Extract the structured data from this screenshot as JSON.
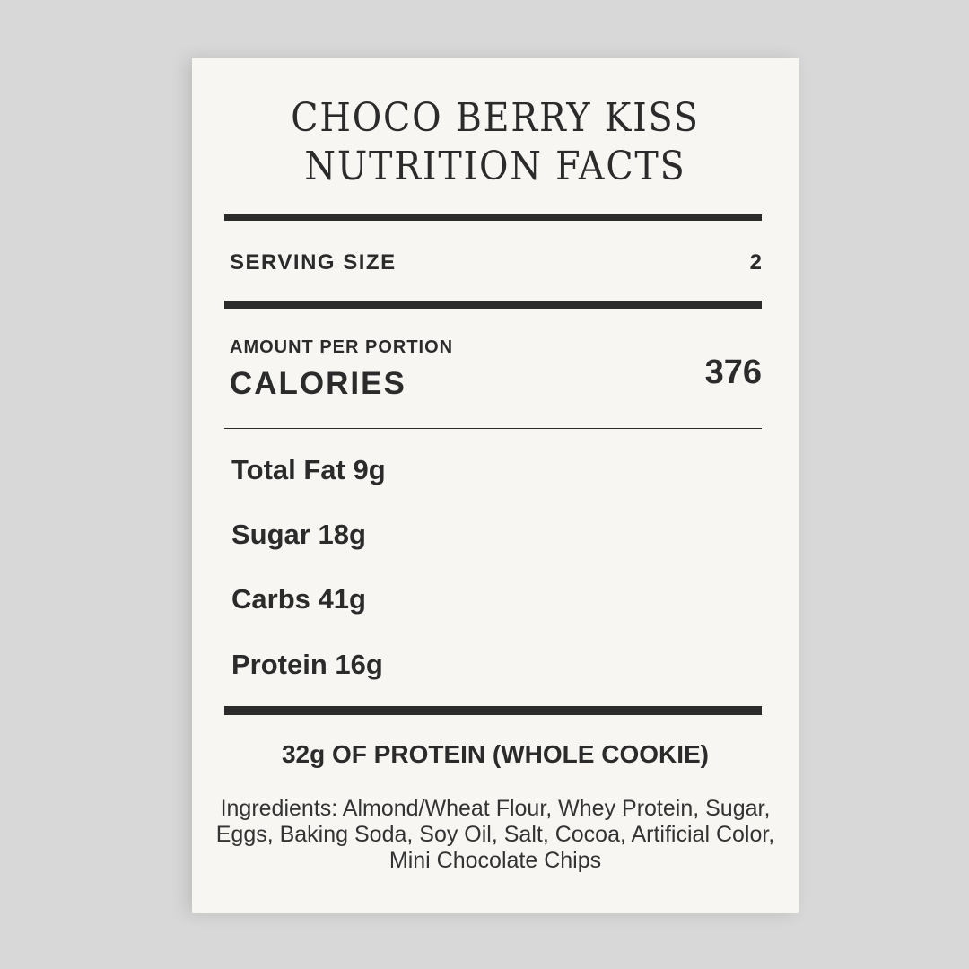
{
  "title": {
    "line1": "CHOCO BERRY KISS",
    "line2": "NUTRITION FACTS"
  },
  "serving": {
    "label": "SERVING SIZE",
    "value": "2"
  },
  "calories": {
    "sublabel": "AMOUNT PER PORTION",
    "label": "CALORIES",
    "value": "376"
  },
  "nutrients": [
    "Total Fat 9g",
    "Sugar 18g",
    "Carbs 41g",
    "Protein 16g"
  ],
  "protein_note": "32g OF PROTEIN (WHOLE COOKIE)",
  "ingredients": "Ingredients: Almond/Wheat Flour, Whey Protein, Sugar, Eggs, Baking Soda, Soy Oil, Salt, Cocoa, Artificial Color, Mini Chocolate Chips"
}
